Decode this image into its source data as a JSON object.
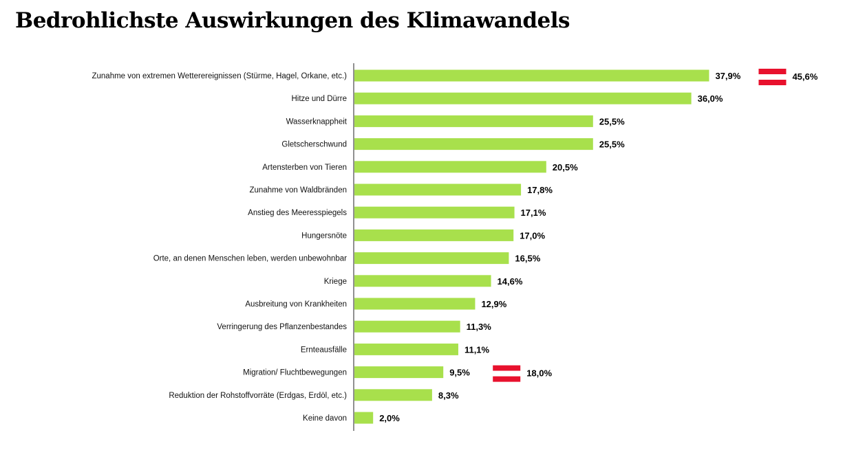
{
  "title": "Bedrohlichste Auswirkungen des Klimawandels",
  "chart_data": {
    "type": "bar",
    "orientation": "horizontal",
    "title": "Bedrohlichste Auswirkungen des Klimawandels",
    "bar_color": "#a8e04c",
    "categories": [
      "Zunahme von extremen Wetterereignissen (Stürme, Hagel, Orkane, etc.)",
      "Hitze und Dürre",
      "Wasserknappheit",
      "Gletscherschwund",
      "Artensterben von Tieren",
      "Zunahme von Waldbränden",
      "Anstieg des Meeresspiegels",
      "Hungersnöte",
      "Orte, an denen Menschen leben, werden unbewohnbar",
      "Kriege",
      "Ausbreitung von Krankheiten",
      "Verringerung des Pflanzenbestandes",
      "Ernteausfälle",
      "Migration/ Fluchtbewegungen",
      "Reduktion der Rohstoffvorräte (Erdgas, Erdöl, etc.)",
      "Keine davon"
    ],
    "values": [
      37.9,
      36.0,
      25.5,
      25.5,
      20.5,
      17.8,
      17.1,
      17.0,
      16.5,
      14.6,
      12.9,
      11.3,
      11.1,
      9.5,
      8.3,
      2.0
    ],
    "value_labels": [
      "37,9%",
      "36,0%",
      "25,5%",
      "25,5%",
      "20,5%",
      "17,8%",
      "17,1%",
      "17,0%",
      "16,5%",
      "14,6%",
      "12,9%",
      "11,3%",
      "11,1%",
      "9,5%",
      "8,3%",
      "2,0%"
    ],
    "austria_comparison": [
      {
        "category_index": 0,
        "value": 45.6,
        "label": "45,6%",
        "icon": "austria-flag-icon"
      },
      {
        "category_index": 13,
        "value": 18.0,
        "label": "18,0%",
        "icon": "austria-flag-icon"
      }
    ],
    "flag_colors": {
      "red": "#e8112d",
      "white": "#ffffff"
    },
    "xlim": [
      0,
      38.5
    ],
    "grid": false,
    "legend": "none"
  }
}
